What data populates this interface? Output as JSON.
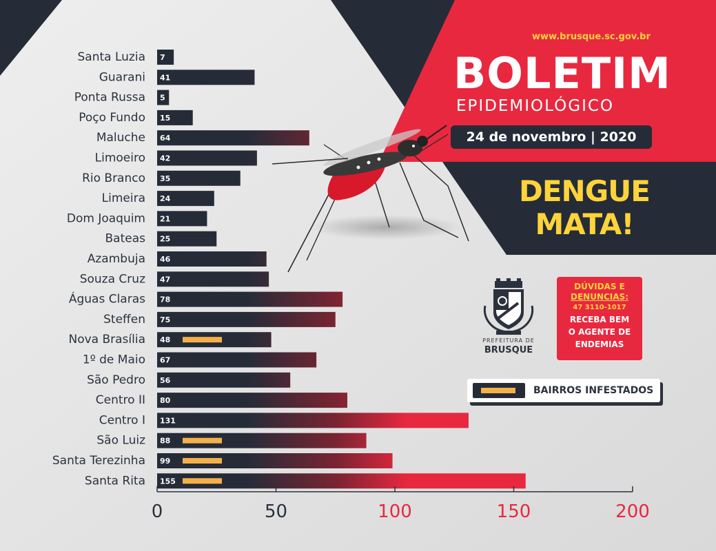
{
  "header": {
    "url": "www.brusque.sc.gov.br",
    "title": "BOLETIM",
    "subtitle": "EPIDEMIOLÓGICO",
    "date": "24 de novembro | 2020",
    "slogan_line1": "DENGUE",
    "slogan_line2": "MATA!"
  },
  "logo": {
    "line1": "PREFEITURA DE",
    "line2": "BRUSQUE"
  },
  "contact": {
    "line1": "DÚVIDAS E",
    "line2": "DENUNCIAS:",
    "phone": "47 3110-1017",
    "line4": "RECEBA BEM",
    "line5": "O AGENTE DE",
    "line6": "ENDEMIAS"
  },
  "legend": {
    "label": "BAIRROS INFESTADOS"
  },
  "colors": {
    "dark_navy": "#252c38",
    "red": "#e8283f",
    "yellow": "#ffd43a",
    "infested_marker": "#f5b04a"
  },
  "icons": [
    "mosquito-image",
    "city-coat-of-arms-icon"
  ],
  "chart_data": {
    "type": "bar",
    "orientation": "horizontal",
    "categories": [
      "Santa Luzia",
      "Guarani",
      "Ponta Russa",
      "Poço Fundo",
      "Maluche",
      "Limoeiro",
      "Rio Branco",
      "Limeira",
      "Dom Joaquim",
      "Bateas",
      "Azambuja",
      "Souza Cruz",
      "Águas Claras",
      "Steffen",
      "Nova Brasília",
      "1º de Maio",
      "São Pedro",
      "Centro II",
      "Centro I",
      "São Luiz",
      "Santa Terezinha",
      "Santa Rita"
    ],
    "values": [
      7,
      41,
      5,
      15,
      64,
      42,
      35,
      24,
      21,
      25,
      46,
      47,
      78,
      75,
      48,
      67,
      56,
      80,
      131,
      88,
      99,
      155
    ],
    "infested": [
      false,
      false,
      false,
      false,
      false,
      false,
      false,
      false,
      false,
      false,
      false,
      false,
      false,
      false,
      true,
      false,
      false,
      false,
      false,
      true,
      true,
      true
    ],
    "xlim": [
      0,
      200
    ],
    "xticks": [
      0,
      50,
      100,
      150,
      200
    ],
    "grid": false,
    "legend_position": "right"
  }
}
